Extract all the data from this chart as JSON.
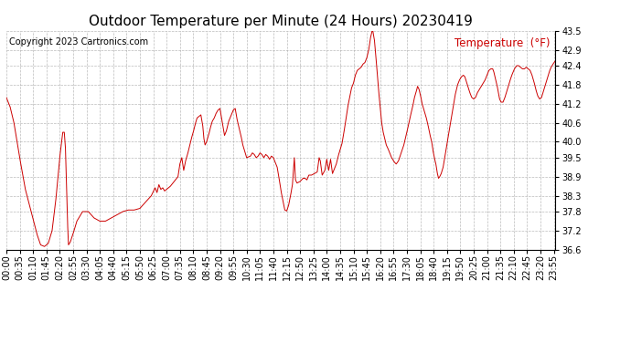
{
  "title": "Outdoor Temperature per Minute (24 Hours) 20230419",
  "copyright_text": "Copyright 2023 Cartronics.com",
  "legend_label": "Temperature  (°F)",
  "line_color": "#cc0000",
  "background_color": "#ffffff",
  "grid_color": "#aaaaaa",
  "ylim": [
    36.6,
    43.5
  ],
  "yticks": [
    36.6,
    37.2,
    37.8,
    38.3,
    38.9,
    39.5,
    40.0,
    40.6,
    41.2,
    41.8,
    42.4,
    42.9,
    43.5
  ],
  "x_tick_interval": 35,
  "title_fontsize": 11,
  "axis_fontsize": 7,
  "copyright_fontsize": 7,
  "legend_fontsize": 8.5,
  "control_points": [
    [
      0,
      41.4
    ],
    [
      10,
      41.1
    ],
    [
      20,
      40.6
    ],
    [
      35,
      39.5
    ],
    [
      50,
      38.5
    ],
    [
      65,
      37.8
    ],
    [
      80,
      37.1
    ],
    [
      90,
      36.75
    ],
    [
      100,
      36.7
    ],
    [
      110,
      36.8
    ],
    [
      120,
      37.2
    ],
    [
      130,
      38.2
    ],
    [
      140,
      39.5
    ],
    [
      148,
      40.3
    ],
    [
      152,
      40.3
    ],
    [
      155,
      39.8
    ],
    [
      158,
      38.5
    ],
    [
      161,
      37.3
    ],
    [
      163,
      36.75
    ],
    [
      168,
      36.85
    ],
    [
      175,
      37.1
    ],
    [
      185,
      37.5
    ],
    [
      200,
      37.8
    ],
    [
      215,
      37.8
    ],
    [
      230,
      37.6
    ],
    [
      245,
      37.5
    ],
    [
      260,
      37.5
    ],
    [
      275,
      37.6
    ],
    [
      290,
      37.7
    ],
    [
      305,
      37.8
    ],
    [
      320,
      37.85
    ],
    [
      335,
      37.85
    ],
    [
      350,
      37.9
    ],
    [
      365,
      38.1
    ],
    [
      380,
      38.3
    ],
    [
      390,
      38.55
    ],
    [
      395,
      38.4
    ],
    [
      400,
      38.65
    ],
    [
      405,
      38.5
    ],
    [
      410,
      38.55
    ],
    [
      415,
      38.45
    ],
    [
      420,
      38.5
    ],
    [
      430,
      38.6
    ],
    [
      440,
      38.75
    ],
    [
      450,
      38.9
    ],
    [
      455,
      39.3
    ],
    [
      460,
      39.5
    ],
    [
      465,
      39.1
    ],
    [
      470,
      39.4
    ],
    [
      475,
      39.6
    ],
    [
      480,
      39.85
    ],
    [
      485,
      40.1
    ],
    [
      490,
      40.3
    ],
    [
      495,
      40.55
    ],
    [
      500,
      40.75
    ],
    [
      505,
      40.8
    ],
    [
      510,
      40.85
    ],
    [
      515,
      40.5
    ],
    [
      518,
      40.1
    ],
    [
      521,
      39.9
    ],
    [
      525,
      40.0
    ],
    [
      530,
      40.2
    ],
    [
      535,
      40.45
    ],
    [
      540,
      40.65
    ],
    [
      545,
      40.75
    ],
    [
      550,
      40.9
    ],
    [
      555,
      41.0
    ],
    [
      560,
      41.05
    ],
    [
      565,
      40.7
    ],
    [
      568,
      40.5
    ],
    [
      572,
      40.2
    ],
    [
      577,
      40.35
    ],
    [
      583,
      40.65
    ],
    [
      590,
      40.85
    ],
    [
      595,
      41.0
    ],
    [
      600,
      41.05
    ],
    [
      605,
      40.7
    ],
    [
      610,
      40.45
    ],
    [
      615,
      40.2
    ],
    [
      620,
      39.9
    ],
    [
      625,
      39.7
    ],
    [
      630,
      39.5
    ],
    [
      640,
      39.55
    ],
    [
      645,
      39.65
    ],
    [
      650,
      39.6
    ],
    [
      655,
      39.5
    ],
    [
      660,
      39.55
    ],
    [
      665,
      39.65
    ],
    [
      670,
      39.6
    ],
    [
      675,
      39.5
    ],
    [
      680,
      39.6
    ],
    [
      685,
      39.55
    ],
    [
      690,
      39.45
    ],
    [
      695,
      39.55
    ],
    [
      700,
      39.5
    ],
    [
      705,
      39.35
    ],
    [
      710,
      39.2
    ],
    [
      715,
      38.85
    ],
    [
      720,
      38.45
    ],
    [
      725,
      38.15
    ],
    [
      730,
      37.85
    ],
    [
      735,
      37.82
    ],
    [
      740,
      38.0
    ],
    [
      745,
      38.3
    ],
    [
      750,
      38.65
    ],
    [
      755,
      39.5
    ],
    [
      758,
      38.8
    ],
    [
      762,
      38.7
    ],
    [
      770,
      38.75
    ],
    [
      778,
      38.85
    ],
    [
      783,
      38.85
    ],
    [
      788,
      38.8
    ],
    [
      793,
      38.95
    ],
    [
      800,
      38.95
    ],
    [
      808,
      39.0
    ],
    [
      815,
      39.05
    ],
    [
      820,
      39.5
    ],
    [
      823,
      39.4
    ],
    [
      828,
      38.95
    ],
    [
      835,
      39.1
    ],
    [
      840,
      39.45
    ],
    [
      845,
      39.1
    ],
    [
      850,
      39.45
    ],
    [
      855,
      39.0
    ],
    [
      860,
      39.15
    ],
    [
      865,
      39.3
    ],
    [
      870,
      39.55
    ],
    [
      875,
      39.75
    ],
    [
      880,
      39.95
    ],
    [
      885,
      40.3
    ],
    [
      890,
      40.7
    ],
    [
      895,
      41.1
    ],
    [
      900,
      41.4
    ],
    [
      905,
      41.7
    ],
    [
      910,
      41.85
    ],
    [
      915,
      42.1
    ],
    [
      920,
      42.25
    ],
    [
      925,
      42.3
    ],
    [
      930,
      42.35
    ],
    [
      935,
      42.45
    ],
    [
      940,
      42.5
    ],
    [
      945,
      42.65
    ],
    [
      950,
      42.9
    ],
    [
      955,
      43.3
    ],
    [
      960,
      43.55
    ],
    [
      962,
      43.4
    ],
    [
      965,
      43.2
    ],
    [
      968,
      42.8
    ],
    [
      972,
      42.2
    ],
    [
      976,
      41.6
    ],
    [
      980,
      41.1
    ],
    [
      984,
      40.6
    ],
    [
      988,
      40.3
    ],
    [
      992,
      40.1
    ],
    [
      996,
      39.9
    ],
    [
      1000,
      39.8
    ],
    [
      1005,
      39.65
    ],
    [
      1010,
      39.5
    ],
    [
      1015,
      39.4
    ],
    [
      1018,
      39.35
    ],
    [
      1022,
      39.3
    ],
    [
      1028,
      39.4
    ],
    [
      1035,
      39.65
    ],
    [
      1042,
      39.9
    ],
    [
      1050,
      40.3
    ],
    [
      1058,
      40.75
    ],
    [
      1065,
      41.1
    ],
    [
      1070,
      41.4
    ],
    [
      1075,
      41.6
    ],
    [
      1078,
      41.75
    ],
    [
      1082,
      41.65
    ],
    [
      1086,
      41.45
    ],
    [
      1090,
      41.2
    ],
    [
      1095,
      41.0
    ],
    [
      1100,
      40.8
    ],
    [
      1105,
      40.55
    ],
    [
      1110,
      40.25
    ],
    [
      1115,
      40.0
    ],
    [
      1118,
      39.75
    ],
    [
      1122,
      39.5
    ],
    [
      1126,
      39.3
    ],
    [
      1130,
      39.0
    ],
    [
      1133,
      38.85
    ],
    [
      1136,
      38.9
    ],
    [
      1140,
      39.0
    ],
    [
      1145,
      39.2
    ],
    [
      1150,
      39.55
    ],
    [
      1156,
      40.0
    ],
    [
      1163,
      40.5
    ],
    [
      1170,
      41.0
    ],
    [
      1177,
      41.5
    ],
    [
      1183,
      41.8
    ],
    [
      1188,
      41.95
    ],
    [
      1193,
      42.05
    ],
    [
      1198,
      42.1
    ],
    [
      1202,
      42.05
    ],
    [
      1206,
      41.9
    ],
    [
      1210,
      41.75
    ],
    [
      1215,
      41.55
    ],
    [
      1220,
      41.4
    ],
    [
      1225,
      41.35
    ],
    [
      1230,
      41.4
    ],
    [
      1235,
      41.55
    ],
    [
      1240,
      41.65
    ],
    [
      1245,
      41.75
    ],
    [
      1250,
      41.85
    ],
    [
      1255,
      41.95
    ],
    [
      1260,
      42.1
    ],
    [
      1265,
      42.25
    ],
    [
      1270,
      42.3
    ],
    [
      1275,
      42.3
    ],
    [
      1278,
      42.2
    ],
    [
      1282,
      42.0
    ],
    [
      1286,
      41.8
    ],
    [
      1290,
      41.55
    ],
    [
      1293,
      41.35
    ],
    [
      1297,
      41.25
    ],
    [
      1302,
      41.25
    ],
    [
      1307,
      41.4
    ],
    [
      1312,
      41.6
    ],
    [
      1318,
      41.85
    ],
    [
      1325,
      42.1
    ],
    [
      1332,
      42.3
    ],
    [
      1338,
      42.4
    ],
    [
      1343,
      42.4
    ],
    [
      1348,
      42.35
    ],
    [
      1353,
      42.3
    ],
    [
      1358,
      42.3
    ],
    [
      1363,
      42.35
    ],
    [
      1368,
      42.3
    ],
    [
      1373,
      42.25
    ],
    [
      1378,
      42.1
    ],
    [
      1383,
      41.9
    ],
    [
      1388,
      41.65
    ],
    [
      1393,
      41.45
    ],
    [
      1398,
      41.35
    ],
    [
      1403,
      41.4
    ],
    [
      1408,
      41.6
    ],
    [
      1413,
      41.8
    ],
    [
      1418,
      42.0
    ],
    [
      1423,
      42.2
    ],
    [
      1428,
      42.35
    ],
    [
      1433,
      42.45
    ],
    [
      1439,
      42.55
    ]
  ]
}
